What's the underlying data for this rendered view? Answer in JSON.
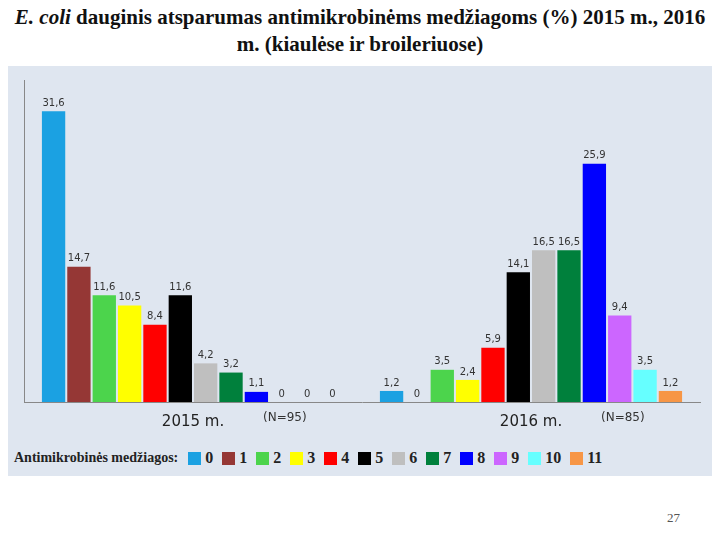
{
  "chart_data": {
    "type": "bar",
    "title": "E. coli dauginis atsparumas antimikrobinėms medžiagoms (%) 2015 m., 2016 m. (kiaulėse ir broileriuose)",
    "categories": [
      "2015 m.",
      "2016 m."
    ],
    "annotations": [
      {
        "text": "(N=95)",
        "category": "2015 m."
      },
      {
        "text": "(N=85)",
        "category": "2016 m."
      }
    ],
    "legend_title": "Antimikrobinės medžiagos:",
    "legend": "bottom",
    "ylim": [
      0,
      35
    ],
    "tick_labels": "x",
    "grid": false,
    "data_labels": true,
    "series": [
      {
        "name": "0",
        "color": "#1ba1e2",
        "values": [
          31.6,
          1.2
        ],
        "value_labels": [
          "31,6",
          "1,2"
        ]
      },
      {
        "name": "1",
        "color": "#953735",
        "values": [
          14.7,
          0
        ],
        "value_labels": [
          "14,7",
          "0"
        ]
      },
      {
        "name": "2",
        "color": "#4cd44c",
        "values": [
          11.6,
          3.5
        ],
        "value_labels": [
          "11,6",
          "3,5"
        ]
      },
      {
        "name": "3",
        "color": "#ffff00",
        "values": [
          10.5,
          2.4
        ],
        "value_labels": [
          "10,5",
          "2,4"
        ]
      },
      {
        "name": "4",
        "color": "#ff0000",
        "values": [
          8.4,
          5.9
        ],
        "value_labels": [
          "8,4",
          "5,9"
        ]
      },
      {
        "name": "5",
        "color": "#000000",
        "values": [
          11.6,
          14.1
        ],
        "value_labels": [
          "11,6",
          "14,1"
        ]
      },
      {
        "name": "6",
        "color": "#bfbfbf",
        "values": [
          4.2,
          16.5
        ],
        "value_labels": [
          "4,2",
          "16,5"
        ]
      },
      {
        "name": "7",
        "color": "#00803c",
        "values": [
          3.2,
          16.5
        ],
        "value_labels": [
          "3,2",
          "16,5"
        ]
      },
      {
        "name": "8",
        "color": "#0000ff",
        "values": [
          1.1,
          25.9
        ],
        "value_labels": [
          "1,1",
          "25,9"
        ]
      },
      {
        "name": "9",
        "color": "#cc66ff",
        "values": [
          0,
          9.4
        ],
        "value_labels": [
          "0",
          "9,4"
        ]
      },
      {
        "name": "10",
        "color": "#66ffff",
        "values": [
          0,
          3.5
        ],
        "value_labels": [
          "0",
          "3,5"
        ]
      },
      {
        "name": "11",
        "color": "#f79646",
        "values": [
          0,
          1.2
        ],
        "value_labels": [
          "0",
          "1,2"
        ]
      }
    ]
  },
  "page": {
    "number": "27"
  }
}
